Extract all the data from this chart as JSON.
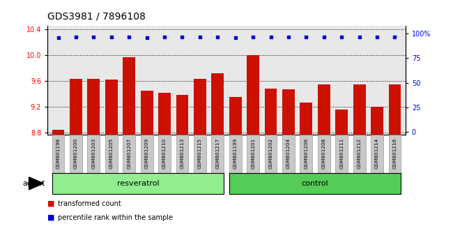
{
  "title": "GDS3981 / 7896108",
  "samples": [
    "GSM801198",
    "GSM801200",
    "GSM801203",
    "GSM801205",
    "GSM801207",
    "GSM801209",
    "GSM801210",
    "GSM801213",
    "GSM801215",
    "GSM801217",
    "GSM801199",
    "GSM801201",
    "GSM801202",
    "GSM801204",
    "GSM801206",
    "GSM801208",
    "GSM801211",
    "GSM801212",
    "GSM801214",
    "GSM801216"
  ],
  "transformed_count": [
    8.84,
    9.63,
    9.63,
    9.62,
    9.97,
    9.45,
    9.42,
    9.38,
    9.63,
    9.72,
    9.35,
    10.0,
    9.48,
    9.47,
    9.27,
    9.55,
    9.16,
    9.55,
    9.2,
    9.55
  ],
  "percentile_rank": [
    96,
    97,
    97,
    97,
    97,
    96,
    97,
    97,
    97,
    97,
    96,
    97,
    97,
    97,
    97,
    97,
    97,
    97,
    97,
    97
  ],
  "groups": {
    "resveratrol": [
      0,
      1,
      2,
      3,
      4,
      5,
      6,
      7,
      8,
      9
    ],
    "control": [
      10,
      11,
      12,
      13,
      14,
      15,
      16,
      17,
      18,
      19
    ]
  },
  "ylim_left": [
    8.77,
    10.45
  ],
  "yticks_left": [
    8.8,
    9.2,
    9.6,
    10.0,
    10.4
  ],
  "ylim_right": [
    -3,
    108
  ],
  "yticks_right": [
    0,
    25,
    50,
    75,
    100
  ],
  "bar_color": "#cc1100",
  "dot_color": "#0000cc",
  "resveratrol_color": "#90ee90",
  "control_color": "#55cc55",
  "sample_bg_color": "#c8c8c8",
  "agent_label": "agent",
  "resveratrol_label": "resveratrol",
  "control_label": "control",
  "legend_bar_label": "transformed count",
  "legend_dot_label": "percentile rank within the sample",
  "title_fontsize": 10,
  "tick_fontsize": 7,
  "label_fontsize": 8,
  "plot_bg_color": "#e8e8e8"
}
